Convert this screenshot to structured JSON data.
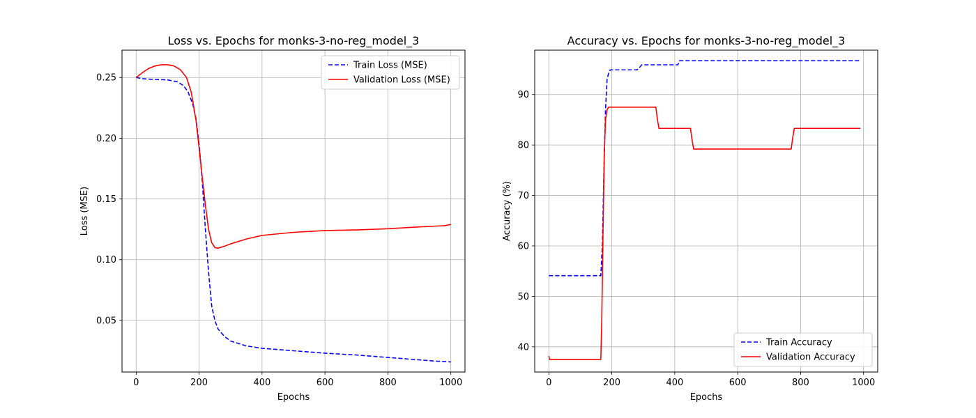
{
  "chart_data": [
    {
      "type": "line",
      "title": "Loss vs. Epochs for monks-3-no-reg_model_3",
      "xlabel": "Epochs",
      "ylabel": "Loss (MSE)",
      "xlim": [
        -45,
        1045
      ],
      "ylim": [
        0.0075,
        0.2725
      ],
      "xticks": [
        0,
        200,
        400,
        600,
        800,
        1000
      ],
      "xtick_labels": [
        "0",
        "200",
        "400",
        "600",
        "800",
        "1000"
      ],
      "yticks": [
        0.05,
        0.1,
        0.15,
        0.2,
        0.25
      ],
      "ytick_labels": [
        "0.05",
        "0.10",
        "0.15",
        "0.20",
        "0.25"
      ],
      "grid": true,
      "legend": "top-right",
      "series": [
        {
          "name": "Train Loss (MSE)",
          "color": "#0000ff",
          "style": "dashed",
          "x": [
            0,
            20,
            50,
            100,
            130,
            150,
            165,
            180,
            190,
            200,
            210,
            220,
            230,
            240,
            250,
            260,
            280,
            300,
            350,
            400,
            500,
            600,
            700,
            800,
            850,
            900,
            950,
            1000
          ],
          "y": [
            0.25,
            0.249,
            0.2485,
            0.248,
            0.2465,
            0.2435,
            0.238,
            0.228,
            0.216,
            0.195,
            0.165,
            0.125,
            0.09,
            0.062,
            0.05,
            0.043,
            0.037,
            0.033,
            0.029,
            0.027,
            0.025,
            0.023,
            0.0215,
            0.0195,
            0.0185,
            0.0175,
            0.0165,
            0.0158
          ]
        },
        {
          "name": "Validation Loss (MSE)",
          "color": "#ff0000",
          "style": "solid",
          "x": [
            0,
            20,
            40,
            60,
            80,
            100,
            120,
            140,
            160,
            175,
            190,
            200,
            210,
            220,
            230,
            240,
            250,
            260,
            280,
            300,
            350,
            400,
            500,
            600,
            700,
            800,
            900,
            980,
            1000
          ],
          "y": [
            0.25,
            0.254,
            0.2575,
            0.2595,
            0.2605,
            0.2605,
            0.2595,
            0.2565,
            0.25,
            0.238,
            0.215,
            0.192,
            0.168,
            0.145,
            0.125,
            0.114,
            0.11,
            0.1095,
            0.111,
            0.113,
            0.117,
            0.12,
            0.1225,
            0.124,
            0.1245,
            0.1255,
            0.127,
            0.128,
            0.129
          ]
        }
      ]
    },
    {
      "type": "line",
      "title": "Accuracy vs. Epochs for monks-3-no-reg_model_3",
      "xlabel": "Epochs",
      "ylabel": "Accuracy (%)",
      "xlim": [
        -45,
        1045
      ],
      "ylim": [
        35,
        98.8
      ],
      "xticks": [
        0,
        200,
        400,
        600,
        800,
        1000
      ],
      "xtick_labels": [
        "0",
        "200",
        "400",
        "600",
        "800",
        "1000"
      ],
      "yticks": [
        40,
        50,
        60,
        70,
        80,
        90
      ],
      "ytick_labels": [
        "40",
        "50",
        "60",
        "70",
        "80",
        "90"
      ],
      "grid": true,
      "legend": "bottom-right",
      "series": [
        {
          "name": "Train Accuracy",
          "color": "#0000ff",
          "style": "dashed",
          "x": [
            0,
            160,
            165,
            170,
            175,
            180,
            185,
            190,
            195,
            280,
            285,
            290,
            295,
            410,
            415,
            990
          ],
          "y": [
            54.1,
            54.1,
            54.1,
            60,
            75,
            87,
            93,
            94.3,
            94.9,
            94.9,
            95.2,
            95.5,
            95.9,
            95.9,
            96.7,
            96.7
          ]
        },
        {
          "name": "Validation Accuracy",
          "color": "#ff0000",
          "style": "solid",
          "x": [
            0,
            2,
            165,
            168,
            172,
            176,
            180,
            185,
            190,
            340,
            345,
            350,
            450,
            455,
            460,
            770,
            775,
            780,
            990
          ],
          "y": [
            38.2,
            37.5,
            37.5,
            45,
            62,
            78,
            85,
            87,
            87.5,
            87.5,
            85,
            83.3,
            83.3,
            81,
            79.2,
            79.2,
            81.5,
            83.3,
            83.3
          ]
        }
      ]
    }
  ]
}
